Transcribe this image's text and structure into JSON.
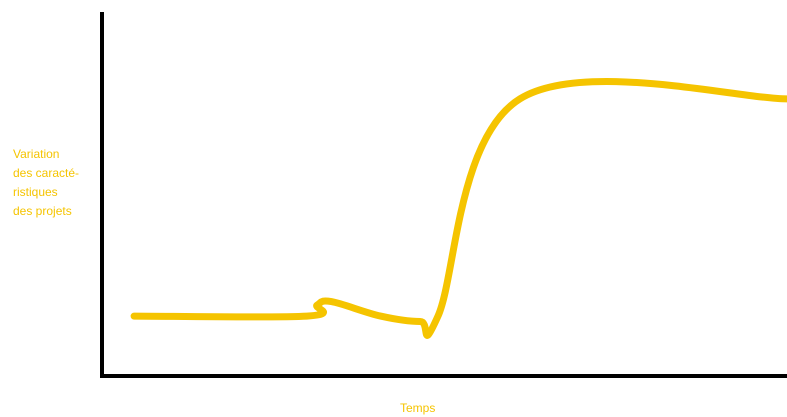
{
  "chart_data": {
    "type": "line",
    "title": "",
    "xlabel": "Temps",
    "ylabel_lines": [
      "Variation",
      "des caracté-",
      "ristiques",
      "des projets"
    ],
    "xlim": [
      0,
      100
    ],
    "ylim": [
      0,
      100
    ],
    "grid": false,
    "legend": "none",
    "series": [
      {
        "color": "#f5c400",
        "points": [
          [
            4.4,
            16
          ],
          [
            29.7,
            16
          ],
          [
            31.2,
            19
          ],
          [
            33.3,
            20
          ],
          [
            40.5,
            16
          ],
          [
            46.3,
            14.5
          ],
          [
            48.9,
            16
          ],
          [
            60.9,
            76
          ],
          [
            100,
            76
          ]
        ]
      }
    ],
    "colors": {
      "axis": "#000000",
      "line": "#f5c400",
      "text": "#f5c400"
    }
  }
}
